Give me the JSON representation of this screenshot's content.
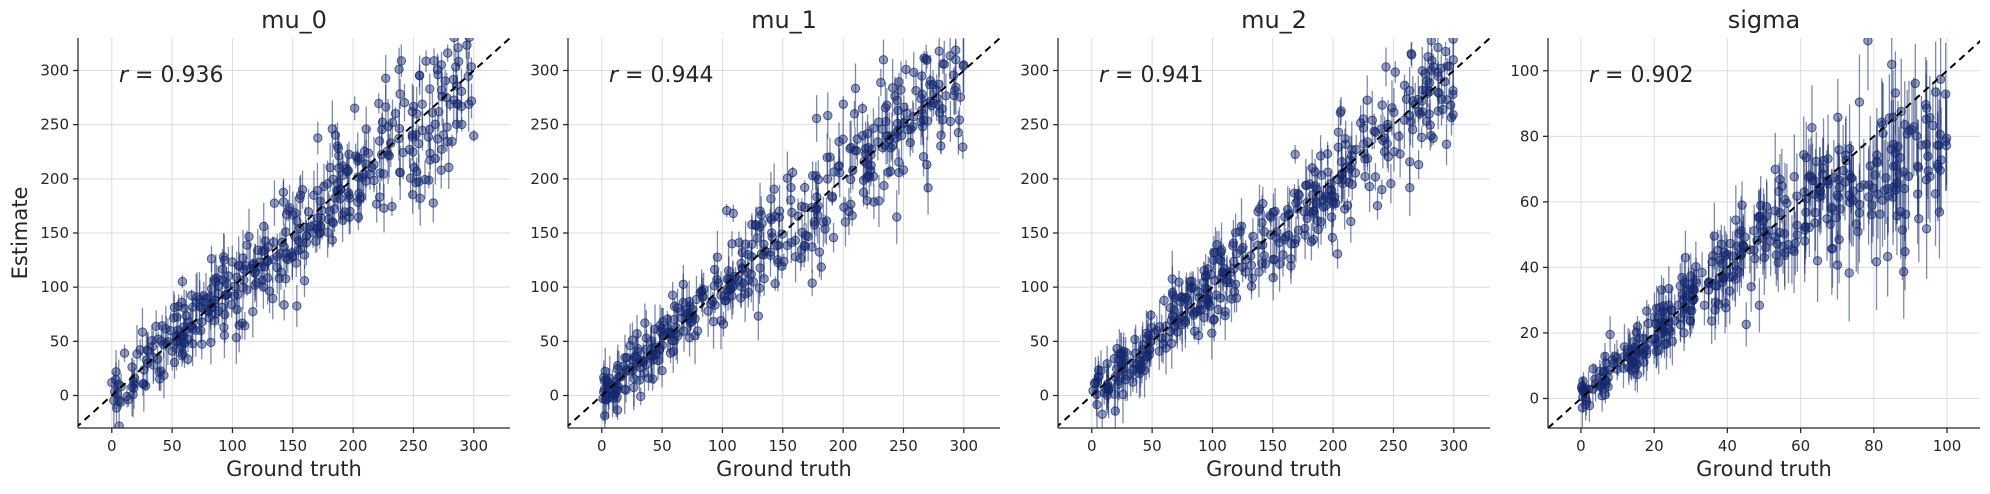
{
  "figure": {
    "ylabel": "Estimate"
  },
  "style": {
    "point_color": "#14286e",
    "diagonal_color": "#000000",
    "grid": true
  },
  "chart_data": [
    {
      "type": "scatter",
      "title": "mu_0",
      "xlabel": "Ground truth",
      "ylabel": "Estimate",
      "correlation_label": "= 0.936",
      "r": 0.936,
      "xlim": [
        -28,
        330
      ],
      "ylim": [
        -30,
        330
      ],
      "xticks": [
        0,
        50,
        100,
        150,
        200,
        250,
        300
      ],
      "yticks": [
        0,
        50,
        100,
        150,
        200,
        250,
        300
      ],
      "diagonal": "y = x (dashed)",
      "points_summary": {
        "n_approx": 400,
        "x_range": [
          0,
          300
        ],
        "error_bars": "vertical"
      }
    },
    {
      "type": "scatter",
      "title": "mu_1",
      "xlabel": "Ground truth",
      "ylabel": "",
      "correlation_label": "= 0.944",
      "r": 0.944,
      "xlim": [
        -28,
        330
      ],
      "ylim": [
        -30,
        330
      ],
      "xticks": [
        0,
        50,
        100,
        150,
        200,
        250,
        300
      ],
      "yticks": [
        0,
        50,
        100,
        150,
        200,
        250,
        300
      ],
      "diagonal": "y = x (dashed)",
      "points_summary": {
        "n_approx": 400,
        "x_range": [
          0,
          300
        ],
        "error_bars": "vertical"
      }
    },
    {
      "type": "scatter",
      "title": "mu_2",
      "xlabel": "Ground truth",
      "ylabel": "",
      "correlation_label": "= 0.941",
      "r": 0.941,
      "xlim": [
        -28,
        330
      ],
      "ylim": [
        -30,
        330
      ],
      "xticks": [
        0,
        50,
        100,
        150,
        200,
        250,
        300
      ],
      "yticks": [
        0,
        50,
        100,
        150,
        200,
        250,
        300
      ],
      "diagonal": "y = x (dashed)",
      "points_summary": {
        "n_approx": 400,
        "x_range": [
          0,
          300
        ],
        "error_bars": "vertical"
      }
    },
    {
      "type": "scatter",
      "title": "sigma",
      "xlabel": "Ground truth",
      "ylabel": "",
      "correlation_label": "= 0.902",
      "r": 0.902,
      "xlim": [
        -9,
        109
      ],
      "ylim": [
        -9,
        110
      ],
      "xticks": [
        0,
        20,
        40,
        60,
        80,
        100
      ],
      "yticks": [
        0,
        20,
        40,
        60,
        80,
        100
      ],
      "diagonal": "y = x (dashed)",
      "points_summary": {
        "n_approx": 400,
        "x_range": [
          0,
          100
        ],
        "error_bars": "vertical"
      }
    }
  ]
}
